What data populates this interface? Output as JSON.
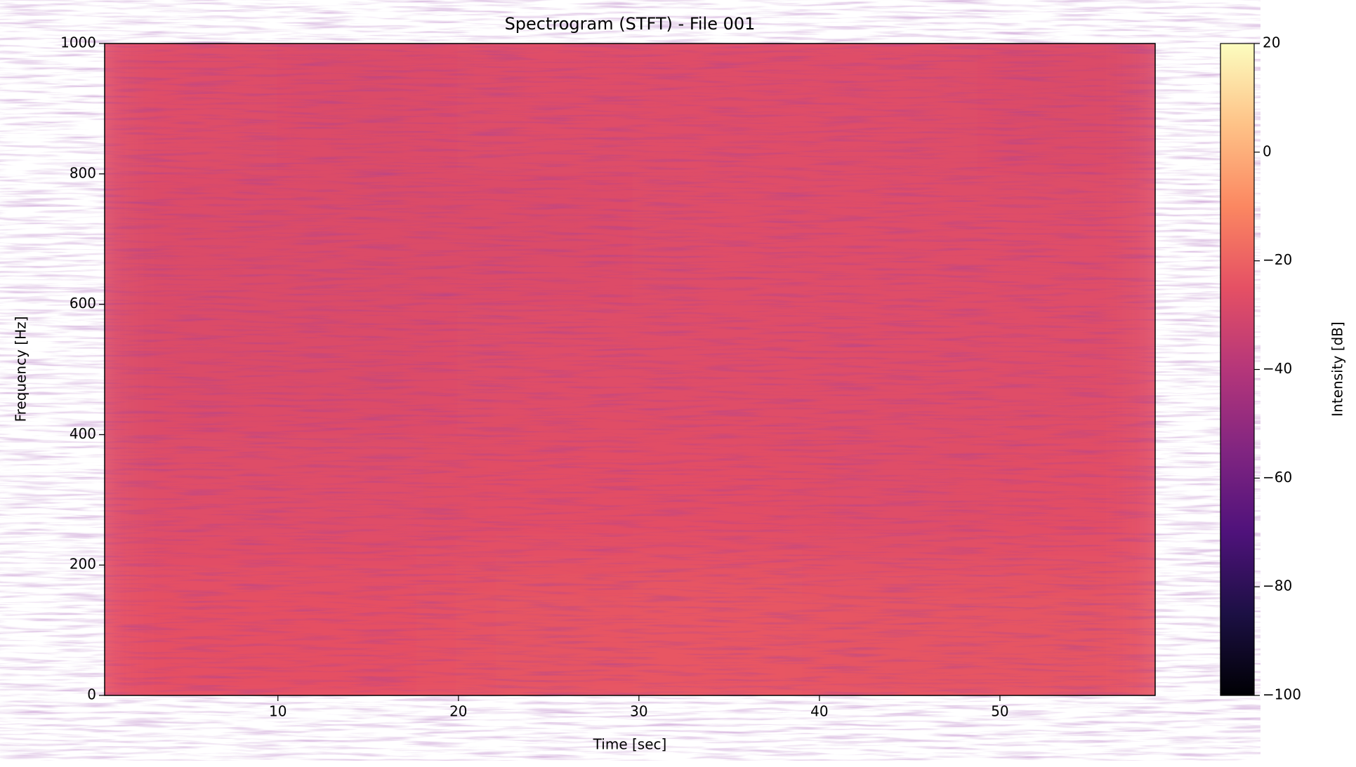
{
  "chart_data": {
    "type": "heatmap",
    "title": "Spectrogram (STFT) - File 001",
    "x_label": "Time [sec]",
    "y_label": "Frequency [Hz]",
    "colorbar_label": "Intensity [dB]",
    "colormap": "magma",
    "xlim": [
      0.4,
      58.6
    ],
    "xticks": [
      10,
      20,
      30,
      40,
      50
    ],
    "ylim": [
      0,
      1000
    ],
    "yticks": [
      0,
      200,
      400,
      600,
      800,
      1000
    ],
    "zlim": [
      -100,
      20
    ],
    "zticks": [
      {
        "value": -100,
        "label": "−100"
      },
      {
        "value": -80,
        "label": "−80"
      },
      {
        "value": -60,
        "label": "−60"
      },
      {
        "value": -40,
        "label": "−40"
      },
      {
        "value": -20,
        "label": "−20"
      },
      0,
      20
    ],
    "z": [
      [
        -27,
        -28,
        -27,
        -27,
        -27,
        -28
      ],
      [
        -28,
        -28,
        -28,
        -27,
        -27,
        -27
      ],
      [
        -28,
        -28,
        -27,
        -27,
        -27,
        -27
      ],
      [
        -27,
        -27,
        -26,
        -26,
        -27,
        -26
      ],
      [
        -25,
        -25,
        -24,
        -23,
        -24,
        -24
      ]
    ]
  }
}
